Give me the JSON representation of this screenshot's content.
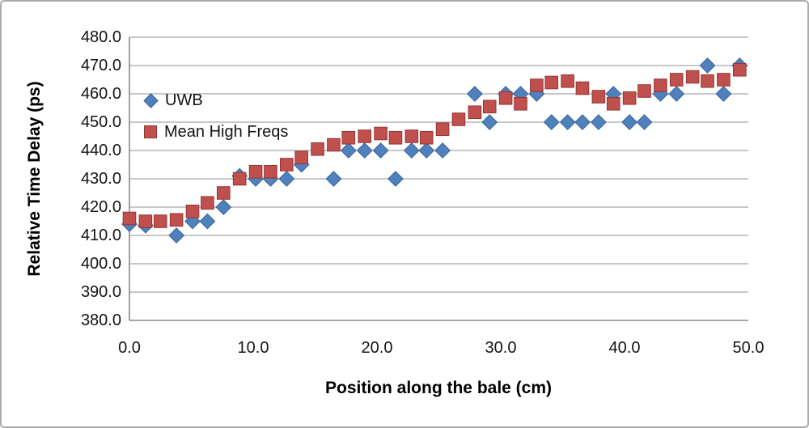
{
  "chart_data": {
    "type": "scatter",
    "title": "",
    "xlabel": "Position along the bale (cm)",
    "ylabel": "Relative Time Delay (ps)",
    "xlim": [
      0,
      50
    ],
    "ylim": [
      380,
      480
    ],
    "grid": "horizontal-gridlines-only",
    "legend_position": "inside-top-left",
    "x_ticks": [
      {
        "value": 0,
        "label": "0.0"
      },
      {
        "value": 10,
        "label": "10.0"
      },
      {
        "value": 20,
        "label": "20.0"
      },
      {
        "value": 30,
        "label": "30.0"
      },
      {
        "value": 40,
        "label": "40.0"
      },
      {
        "value": 50,
        "label": "50.0"
      }
    ],
    "y_ticks": [
      {
        "value": 380,
        "label": "380.0"
      },
      {
        "value": 390,
        "label": "390.0"
      },
      {
        "value": 400,
        "label": "400.0"
      },
      {
        "value": 410,
        "label": "410.0"
      },
      {
        "value": 420,
        "label": "420.0"
      },
      {
        "value": 430,
        "label": "430.0"
      },
      {
        "value": 440,
        "label": "440.0"
      },
      {
        "value": 450,
        "label": "450.0"
      },
      {
        "value": 460,
        "label": "460.0"
      },
      {
        "value": 470,
        "label": "470.0"
      },
      {
        "value": 480,
        "label": "480.0"
      }
    ],
    "colors": {
      "uwb_fill": "#4f81bd",
      "uwb_edge": "#38619c",
      "mean_fill": "#c0504d",
      "mean_edge": "#943634",
      "gridline": "#a6a6a6",
      "axis_line": "#898989"
    },
    "series": [
      {
        "name": "UWB",
        "marker": "diamond",
        "points": [
          [
            0.0,
            414
          ],
          [
            1.3,
            413.5
          ],
          [
            3.8,
            410
          ],
          [
            5.1,
            415
          ],
          [
            6.3,
            415
          ],
          [
            7.6,
            420
          ],
          [
            8.9,
            431
          ],
          [
            10.2,
            430
          ],
          [
            11.4,
            430
          ],
          [
            12.7,
            430
          ],
          [
            13.9,
            435
          ],
          [
            16.5,
            430
          ],
          [
            17.7,
            440
          ],
          [
            19.0,
            440
          ],
          [
            20.3,
            440
          ],
          [
            21.5,
            430
          ],
          [
            22.8,
            440
          ],
          [
            24.0,
            440
          ],
          [
            25.3,
            440
          ],
          [
            27.9,
            460
          ],
          [
            29.1,
            450
          ],
          [
            30.4,
            460
          ],
          [
            31.6,
            460
          ],
          [
            32.9,
            460
          ],
          [
            34.1,
            450
          ],
          [
            35.4,
            450
          ],
          [
            36.6,
            450
          ],
          [
            37.9,
            450
          ],
          [
            39.1,
            460
          ],
          [
            40.4,
            450
          ],
          [
            41.6,
            450
          ],
          [
            42.9,
            460
          ],
          [
            44.2,
            460
          ],
          [
            46.7,
            470
          ],
          [
            48.0,
            460
          ],
          [
            49.3,
            470
          ]
        ]
      },
      {
        "name": "Mean High Freqs",
        "marker": "square",
        "points": [
          [
            0.0,
            416
          ],
          [
            1.3,
            415
          ],
          [
            2.5,
            415
          ],
          [
            3.8,
            415.5
          ],
          [
            5.1,
            418.5
          ],
          [
            6.3,
            421.5
          ],
          [
            7.6,
            425
          ],
          [
            8.9,
            430
          ],
          [
            10.2,
            432.5
          ],
          [
            11.4,
            432.5
          ],
          [
            12.7,
            435
          ],
          [
            13.9,
            437.5
          ],
          [
            15.2,
            440.5
          ],
          [
            16.5,
            442
          ],
          [
            17.7,
            444.5
          ],
          [
            19.0,
            445
          ],
          [
            20.3,
            446
          ],
          [
            21.5,
            444.5
          ],
          [
            22.8,
            445
          ],
          [
            24.0,
            444.5
          ],
          [
            25.3,
            447.5
          ],
          [
            26.6,
            451
          ],
          [
            27.9,
            453.5
          ],
          [
            29.1,
            455.5
          ],
          [
            30.4,
            458.5
          ],
          [
            31.6,
            456.5
          ],
          [
            32.9,
            463
          ],
          [
            34.1,
            464
          ],
          [
            35.4,
            464.5
          ],
          [
            36.6,
            462
          ],
          [
            37.9,
            459
          ],
          [
            39.1,
            456.5
          ],
          [
            40.4,
            458.5
          ],
          [
            41.6,
            461
          ],
          [
            42.9,
            463
          ],
          [
            44.2,
            465
          ],
          [
            45.5,
            466
          ],
          [
            46.7,
            464.5
          ],
          [
            48.0,
            465
          ],
          [
            49.3,
            468.5
          ]
        ]
      }
    ]
  }
}
